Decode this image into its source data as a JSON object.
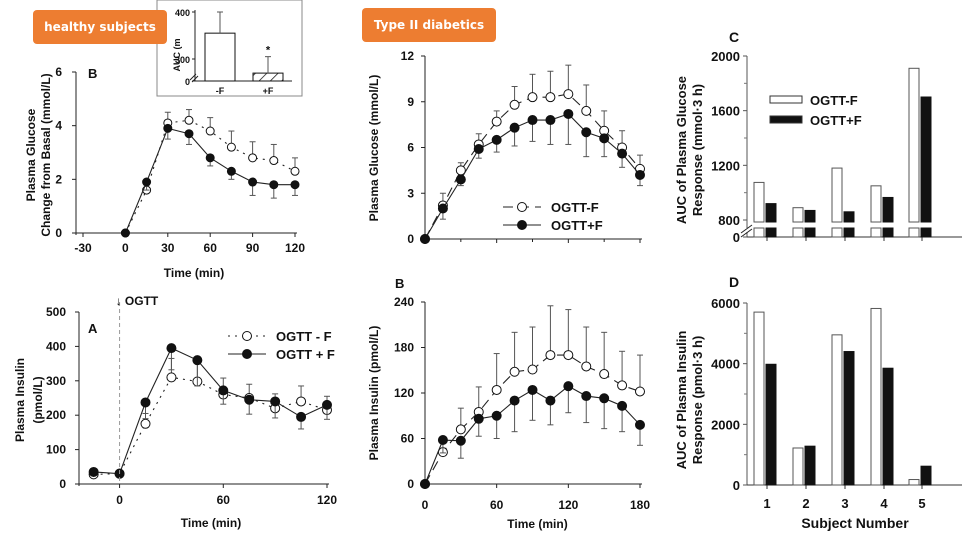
{
  "badges": {
    "healthy": "healthy subjects",
    "diabetic": "Type II diabetics"
  },
  "chart_data": [
    {
      "id": "healthy-glucose",
      "type": "line",
      "panel_label": "B",
      "title": "",
      "xlabel": "Time (min)",
      "ylabel": [
        "Plasma Glucose",
        "Change from Basal (mmol/L)"
      ],
      "xlim": [
        -30,
        120
      ],
      "ylim": [
        0,
        6
      ],
      "xticks": [
        -30,
        0,
        30,
        60,
        90,
        120
      ],
      "yticks": [
        0,
        2,
        4,
        6
      ],
      "x": [
        0,
        15,
        30,
        45,
        60,
        75,
        90,
        105,
        120
      ],
      "series": [
        {
          "name": "-F",
          "style": "open-dotted",
          "values": [
            0,
            1.6,
            4.1,
            4.2,
            3.8,
            3.2,
            2.8,
            2.7,
            2.3
          ],
          "errors": [
            0,
            0.3,
            0.4,
            0.4,
            0.5,
            0.6,
            0.6,
            0.6,
            0.5
          ]
        },
        {
          "name": "+F",
          "style": "filled-solid",
          "values": [
            0,
            1.9,
            3.9,
            3.7,
            2.8,
            2.3,
            1.9,
            1.8,
            1.8
          ],
          "errors": [
            0,
            0.3,
            0.4,
            0.4,
            0.3,
            0.3,
            0.5,
            0.5,
            0.4
          ]
        }
      ],
      "inset": {
        "type": "bar",
        "ylabel": "AUC (m",
        "categories": [
          "-F",
          "+F"
        ],
        "values": [
          355,
          270
        ],
        "errors": [
          45,
          35
        ],
        "yticks": [
          0,
          300,
          400
        ],
        "annotations": [
          "*"
        ]
      }
    },
    {
      "id": "healthy-insulin",
      "type": "line",
      "panel_label": "A",
      "annotation": "↓ OGTT",
      "xlabel": "Time (min)",
      "ylabel": [
        "Plasma Insulin",
        "(pmol/L)"
      ],
      "xlim": [
        -20,
        120
      ],
      "ylim": [
        0,
        500
      ],
      "xticks": [
        0,
        60,
        120
      ],
      "yticks": [
        0,
        100,
        200,
        300,
        400,
        500
      ],
      "x": [
        -15,
        0,
        15,
        30,
        45,
        60,
        75,
        90,
        105,
        120
      ],
      "legend": {
        "position": "top-right",
        "entries": [
          "OGTT - F",
          "OGTT + F"
        ]
      },
      "series": [
        {
          "name": "OGTT - F",
          "style": "open-dotted",
          "values": [
            28,
            30,
            175,
            310,
            298,
            260,
            250,
            220,
            240,
            215
          ],
          "errors": [
            0,
            0,
            30,
            55,
            68,
            48,
            40,
            42,
            45,
            40
          ]
        },
        {
          "name": "OGTT + F",
          "style": "filled-solid",
          "values": [
            35,
            30,
            237,
            395,
            360,
            272,
            245,
            240,
            195,
            230
          ],
          "errors": [
            0,
            0,
            47,
            63,
            75,
            40,
            42,
            48,
            35,
            42
          ]
        }
      ]
    },
    {
      "id": "diabetic-glucose",
      "type": "line",
      "panel_label": "",
      "xlabel": "",
      "ylabel": "Plasma Glucose (mmol/L)",
      "xlim": [
        0,
        180
      ],
      "ylim": [
        0,
        12
      ],
      "xticks": [
        0,
        60,
        120,
        180
      ],
      "yticks": [
        0,
        3,
        6,
        9,
        12
      ],
      "x": [
        0,
        15,
        30,
        45,
        60,
        75,
        90,
        105,
        120,
        135,
        150,
        165,
        180
      ],
      "legend": {
        "position": "bottom-center",
        "entries": [
          "OGTT-F",
          "OGTT+F"
        ]
      },
      "series": [
        {
          "name": "OGTT-F",
          "style": "open-dashed",
          "values": [
            0,
            2.2,
            4.5,
            6.2,
            7.7,
            8.8,
            9.3,
            9.3,
            9.5,
            8.4,
            7.1,
            6.0,
            4.6
          ],
          "errors": [
            0,
            0.8,
            0.5,
            0.7,
            0.7,
            1.2,
            1.5,
            1.7,
            1.9,
            1.7,
            1.3,
            1.1,
            0.9
          ]
        },
        {
          "name": "OGTT+F",
          "style": "filled-solid",
          "values": [
            0,
            2.0,
            3.9,
            5.9,
            6.5,
            7.3,
            7.8,
            7.8,
            8.2,
            7.0,
            6.6,
            5.6,
            4.2
          ],
          "errors": [
            0,
            0.7,
            0.4,
            0.6,
            0.8,
            1.2,
            1.4,
            1.6,
            2.0,
            1.6,
            1.2,
            0.9,
            0.7
          ]
        }
      ]
    },
    {
      "id": "diabetic-insulin",
      "type": "line",
      "panel_label": "B",
      "xlabel": "Time (min)",
      "ylabel": "Plasma Insulin (pmol/L)",
      "xlim": [
        0,
        180
      ],
      "ylim": [
        0,
        240
      ],
      "xticks": [
        0,
        60,
        120,
        180
      ],
      "yticks": [
        0,
        60,
        120,
        180,
        240
      ],
      "x": [
        0,
        15,
        30,
        45,
        60,
        75,
        90,
        105,
        120,
        135,
        150,
        165,
        180
      ],
      "series": [
        {
          "name": "OGTT-F",
          "style": "open-dashed",
          "values": [
            0,
            42,
            72,
            95,
            124,
            148,
            151,
            170,
            170,
            155,
            145,
            130,
            122
          ],
          "errors": [
            0,
            0,
            28,
            33,
            48,
            52,
            56,
            65,
            60,
            52,
            55,
            45,
            48
          ]
        },
        {
          "name": "OGTT+F",
          "style": "filled-solid",
          "values": [
            0,
            58,
            57,
            86,
            90,
            110,
            124,
            110,
            129,
            116,
            113,
            103,
            78
          ],
          "errors": [
            0,
            17,
            23,
            23,
            30,
            41,
            40,
            32,
            35,
            35,
            40,
            34,
            27
          ]
        }
      ]
    },
    {
      "id": "diabetic-glucose-auc",
      "type": "bar",
      "panel_label": "C",
      "xlabel": "",
      "ylabel": [
        "AUC of Plasma Glucose",
        "Response (mmol·3 h)"
      ],
      "ylim": [
        800,
        2000
      ],
      "axis_break": true,
      "yticks": [
        0,
        800,
        1200,
        1600,
        2000
      ],
      "categories": [
        "1",
        "2",
        "3",
        "4",
        "5"
      ],
      "legend": {
        "position": "top-left",
        "entries": [
          "OGTT-F",
          "OGTT+F"
        ]
      },
      "series": [
        {
          "name": "OGTT-F",
          "fill": "open",
          "values": [
            1075,
            890,
            1180,
            1050,
            1910
          ]
        },
        {
          "name": "OGTT+F",
          "fill": "black",
          "values": [
            920,
            870,
            860,
            965,
            1700
          ]
        }
      ]
    },
    {
      "id": "diabetic-insulin-auc",
      "type": "bar",
      "panel_label": "D",
      "xlabel": "Subject Number",
      "ylabel": [
        "AUC of Plasma Insulin",
        "Response (pmol·3 h)"
      ],
      "ylim": [
        0,
        6000
      ],
      "yticks": [
        0,
        2000,
        4000,
        6000
      ],
      "categories": [
        "1",
        "2",
        "3",
        "4",
        "5"
      ],
      "series": [
        {
          "name": "OGTT-F",
          "fill": "open",
          "values": [
            5700,
            1220,
            4950,
            5820,
            180
          ]
        },
        {
          "name": "OGTT+F",
          "fill": "black",
          "values": [
            3980,
            1280,
            4400,
            3850,
            620
          ]
        }
      ]
    }
  ],
  "legend_markers": {
    "open": "open-circle-marker",
    "filled": "filled-circle-marker"
  },
  "colors": {
    "badge": "#ed7d31",
    "ink": "#111111",
    "axis": "#333333",
    "error_gray": "#555555"
  }
}
